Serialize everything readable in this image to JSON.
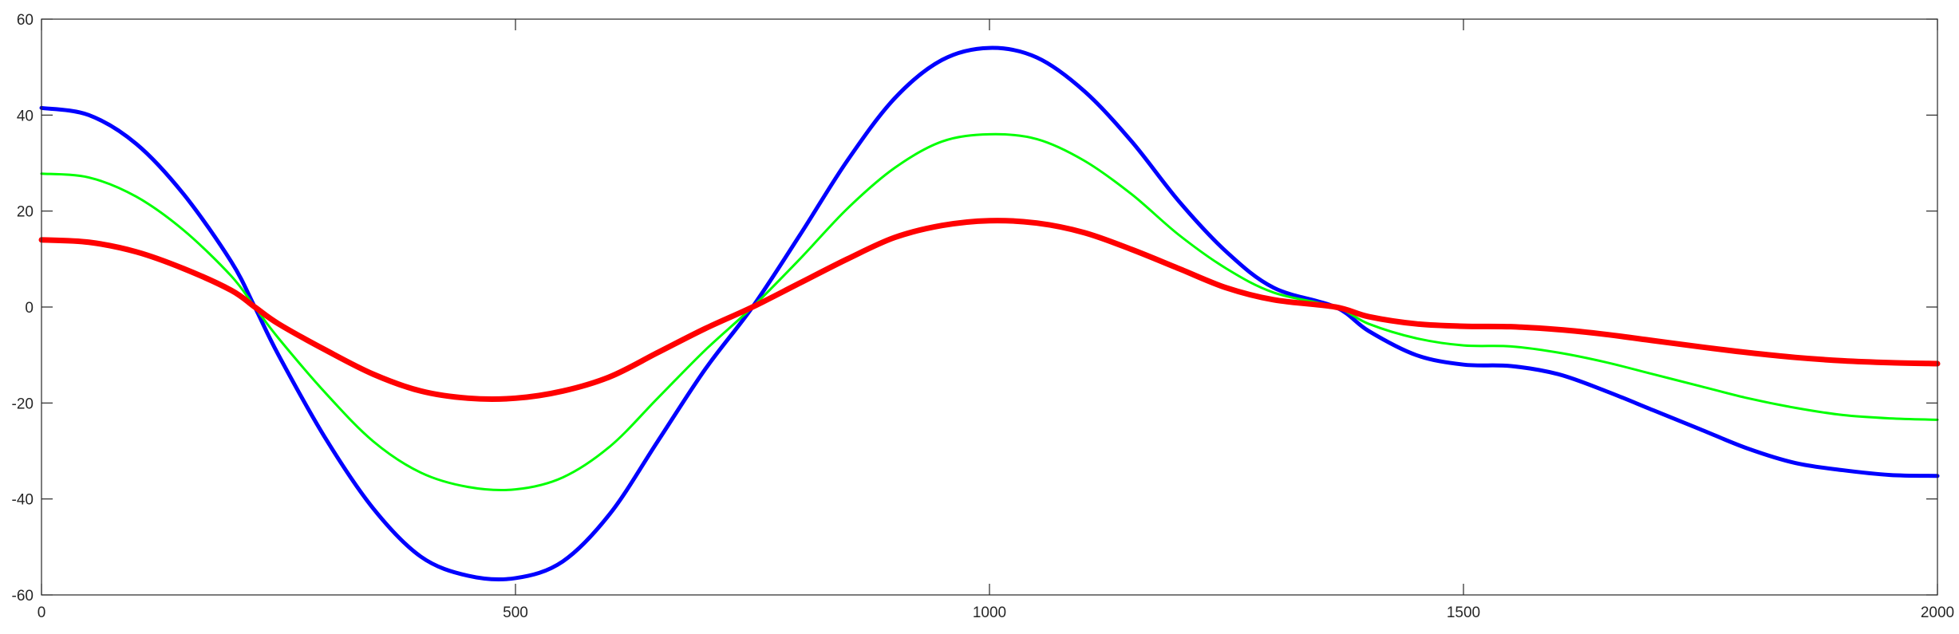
{
  "chart_data": {
    "type": "line",
    "title": "",
    "xlabel": "",
    "ylabel": "",
    "xlim": [
      0,
      2000
    ],
    "ylim": [
      -60,
      60
    ],
    "xticks": [
      0,
      500,
      1000,
      1500,
      2000
    ],
    "yticks": [
      -60,
      -40,
      -20,
      0,
      20,
      40,
      60
    ],
    "xtick_labels": [
      "0",
      "500",
      "1000",
      "1500",
      "2000"
    ],
    "ytick_labels": [
      "-60",
      "-40",
      "-20",
      "0",
      "20",
      "40",
      "60"
    ],
    "grid": false,
    "legend": "none",
    "series": [
      {
        "color": "#0000ff",
        "line_width": 5,
        "x": [
          0,
          50,
          100,
          150,
          200,
          225,
          250,
          300,
          350,
          400,
          450,
          500,
          550,
          600,
          650,
          700,
          750,
          800,
          850,
          900,
          950,
          1000,
          1050,
          1100,
          1150,
          1200,
          1250,
          1300,
          1365,
          1400,
          1450,
          1500,
          1550,
          1600,
          1650,
          1700,
          1750,
          1800,
          1850,
          1900,
          1950,
          2000
        ],
        "y": [
          41.5,
          40,
          34,
          23.5,
          9.5,
          0,
          -10,
          -27.5,
          -42,
          -52,
          -56,
          -56.5,
          -53,
          -43,
          -28,
          -13,
          0,
          15,
          30.5,
          43.5,
          51.5,
          54,
          52,
          45,
          34.5,
          22,
          11.5,
          4,
          0,
          -5,
          -10,
          -12,
          -12.3,
          -14,
          -17.5,
          -21.5,
          -25.5,
          -29.5,
          -32.5,
          -34,
          -35,
          -35.2
        ]
      },
      {
        "color": "#00ff00",
        "line_width": 3,
        "x": [
          0,
          50,
          100,
          150,
          200,
          225,
          250,
          300,
          350,
          400,
          450,
          500,
          550,
          600,
          650,
          700,
          750,
          800,
          850,
          900,
          950,
          1000,
          1050,
          1100,
          1150,
          1200,
          1250,
          1300,
          1365,
          1400,
          1450,
          1500,
          1550,
          1600,
          1650,
          1700,
          1750,
          1800,
          1850,
          1900,
          1950,
          2000
        ],
        "y": [
          27.8,
          27,
          23,
          16,
          6.5,
          0,
          -6.5,
          -18,
          -28,
          -34.5,
          -37.5,
          -38,
          -35.5,
          -29,
          -19,
          -9,
          0,
          10,
          20.5,
          29,
          34.5,
          36,
          35,
          30.5,
          23.5,
          15,
          8,
          3,
          0,
          -3.5,
          -6.5,
          -8,
          -8.2,
          -9.5,
          -11.5,
          -14,
          -16.5,
          -19,
          -21,
          -22.5,
          -23.2,
          -23.5
        ]
      },
      {
        "color": "#ff0000",
        "line_width": 7,
        "x": [
          0,
          50,
          100,
          150,
          200,
          225,
          250,
          300,
          350,
          400,
          450,
          500,
          550,
          600,
          650,
          700,
          750,
          800,
          850,
          900,
          950,
          1000,
          1050,
          1100,
          1150,
          1200,
          1250,
          1300,
          1365,
          1400,
          1450,
          1500,
          1550,
          1600,
          1650,
          1700,
          1750,
          1800,
          1850,
          1900,
          1950,
          2000
        ],
        "y": [
          14,
          13.5,
          11.5,
          8,
          3.5,
          0,
          -3.5,
          -9,
          -14,
          -17.5,
          -19,
          -19,
          -17.5,
          -14.5,
          -9.5,
          -4.5,
          0,
          5,
          10,
          14.5,
          17,
          18,
          17.5,
          15.5,
          12,
          8,
          4,
          1.5,
          0,
          -2,
          -3.5,
          -4,
          -4.1,
          -4.7,
          -5.7,
          -7,
          -8.3,
          -9.5,
          -10.5,
          -11.2,
          -11.6,
          -11.8
        ]
      }
    ]
  }
}
